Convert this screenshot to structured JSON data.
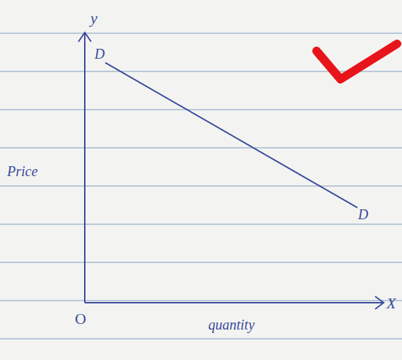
{
  "chart_data": {
    "type": "line",
    "x_label": "quantity",
    "y_label": "Price",
    "x_axis_name": "X",
    "y_axis_name": "y",
    "origin_label": "O",
    "x": [
      0.7,
      9.3
    ],
    "values": [
      9.1,
      3.6
    ],
    "point_labels": [
      "D",
      "D"
    ],
    "color": "#3b4a9c",
    "xlim": [
      0,
      10
    ],
    "ylim": [
      0,
      10
    ],
    "tick_labels": false,
    "grid": false
  }
}
